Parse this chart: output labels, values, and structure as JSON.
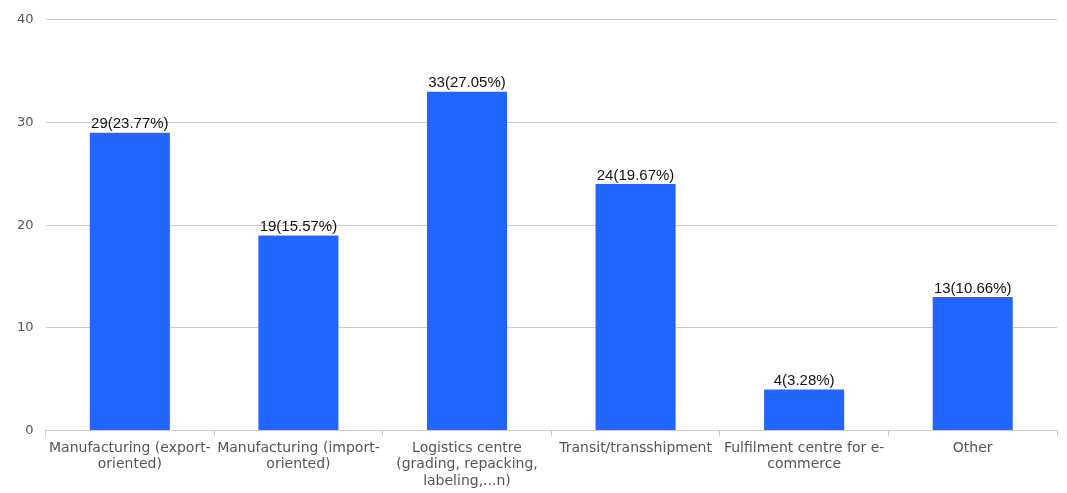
{
  "chart_data": {
    "type": "bar",
    "categories": [
      "Manufacturing (export-oriented)",
      "Manufacturing (import-oriented)",
      "Logistics centre (grading, repacking, labeling,...n)",
      "Transit/transshipment",
      "Fulfilment centre for e-commerce",
      "Other"
    ],
    "values": [
      29,
      19,
      33,
      24,
      4,
      13
    ],
    "value_labels": [
      "29(23.77%)",
      "19(15.57%)",
      "33(27.05%)",
      "24(19.67%)",
      "4(3.28%)",
      "13(10.66%)"
    ],
    "color": "#2266ff",
    "ylim": [
      0,
      40
    ],
    "yticks": [
      0,
      10,
      20,
      30,
      40
    ],
    "grid": "y",
    "legend": false
  }
}
